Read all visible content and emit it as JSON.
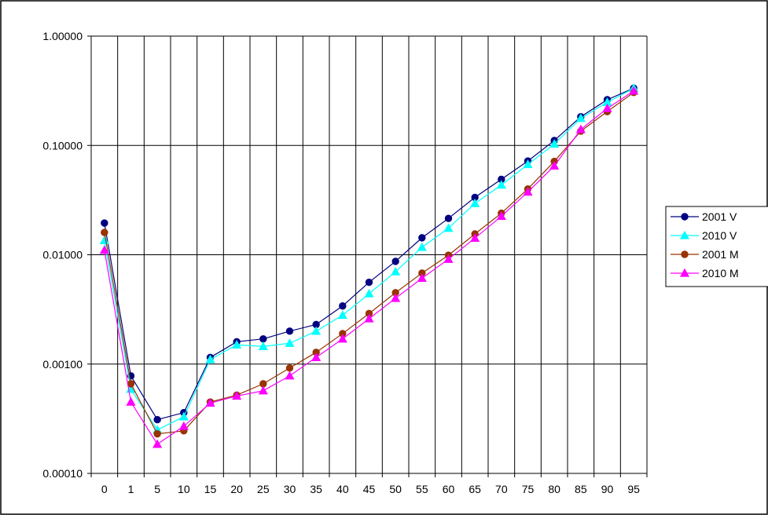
{
  "chart_data": {
    "type": "line",
    "y_scale": "log",
    "ylim": [
      0.0001,
      1
    ],
    "y_ticks": [
      "1.00000",
      "0.10000",
      "0.01000",
      "0.00100",
      "0.00010"
    ],
    "y_tick_values": [
      1,
      0.1,
      0.01,
      0.001,
      0.0001
    ],
    "categories": [
      "0",
      "1",
      "5",
      "10",
      "15",
      "20",
      "25",
      "30",
      "35",
      "40",
      "45",
      "50",
      "55",
      "60",
      "65",
      "70",
      "75",
      "80",
      "85",
      "90",
      "95"
    ],
    "grid": true,
    "legend_position": "right",
    "series": [
      {
        "name": "2001 V",
        "color": "#000080",
        "marker": "circle",
        "values": [
          0.0195,
          0.00078,
          0.00031,
          0.00036,
          0.00115,
          0.0016,
          0.0017,
          0.002,
          0.0023,
          0.0034,
          0.0056,
          0.0087,
          0.0143,
          0.0215,
          0.0335,
          0.049,
          0.072,
          0.111,
          0.183,
          0.262,
          0.334
        ]
      },
      {
        "name": "2010 V",
        "color": "#00FFFF",
        "marker": "triangle",
        "values": [
          0.0135,
          0.00059,
          0.00025,
          0.00033,
          0.0011,
          0.0015,
          0.00145,
          0.00155,
          0.002,
          0.0028,
          0.0044,
          0.007,
          0.0117,
          0.0175,
          0.0295,
          0.0435,
          0.067,
          0.103,
          0.177,
          0.248,
          0.333
        ]
      },
      {
        "name": "2001 M",
        "color": "#993300",
        "marker": "circle",
        "values": [
          0.016,
          0.00066,
          0.00023,
          0.000245,
          0.00045,
          0.00052,
          0.00066,
          0.00092,
          0.00128,
          0.0019,
          0.0029,
          0.0045,
          0.0068,
          0.0099,
          0.0155,
          0.024,
          0.04,
          0.0715,
          0.135,
          0.204,
          0.305
        ]
      },
      {
        "name": "2010 M",
        "color": "#FF00FF",
        "marker": "triangle",
        "values": [
          0.011,
          0.00045,
          0.000185,
          0.00027,
          0.00044,
          0.00051,
          0.00057,
          0.00078,
          0.00115,
          0.0017,
          0.0026,
          0.004,
          0.0061,
          0.0091,
          0.0142,
          0.0225,
          0.0375,
          0.065,
          0.14,
          0.218,
          0.315
        ]
      }
    ]
  }
}
